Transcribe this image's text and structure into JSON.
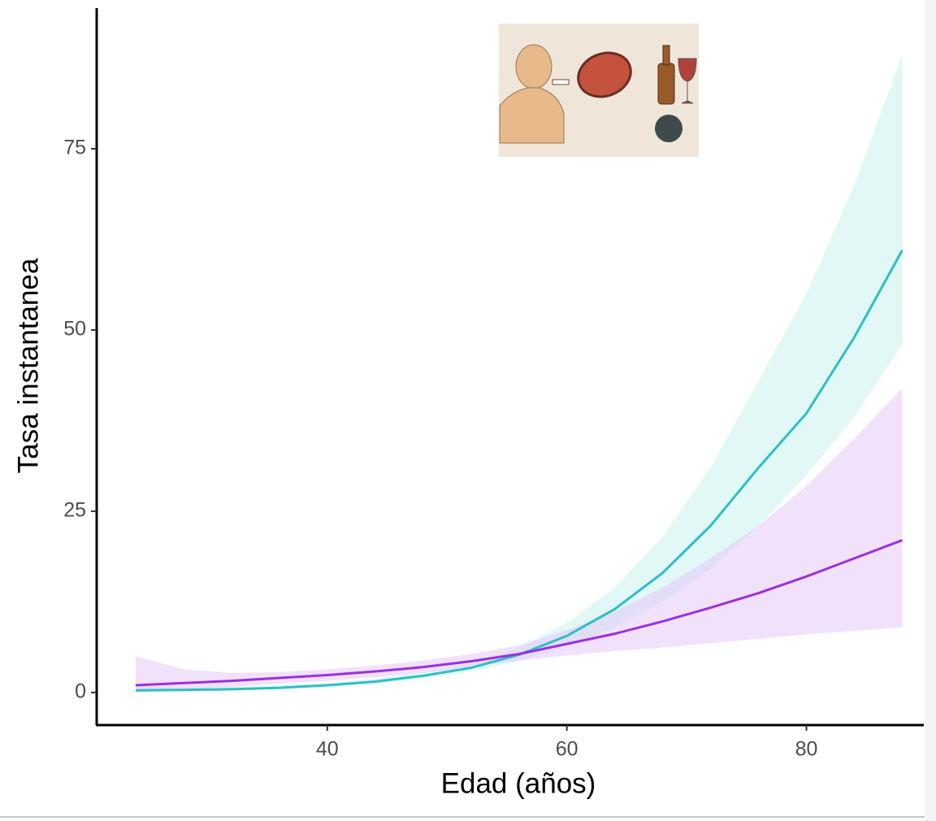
{
  "chart_data": {
    "type": "line",
    "x_label": "Edad (años)",
    "y_label": "Tasa instantanea",
    "x": [
      24,
      28,
      32,
      36,
      40,
      44,
      48,
      52,
      56,
      60,
      64,
      68,
      72,
      76,
      80,
      84,
      88
    ],
    "series": [
      {
        "color": "#2ebfc4",
        "band_color": "#c9f2ef",
        "values": [
          0.3,
          0.35,
          0.45,
          0.65,
          1.0,
          1.5,
          2.3,
          3.4,
          5.2,
          7.8,
          11.5,
          16.5,
          23,
          31,
          38.5,
          49,
          61
        ],
        "lower": [
          0.1,
          0.15,
          0.25,
          0.45,
          0.75,
          1.2,
          1.9,
          2.9,
          4.3,
          6.3,
          9,
          12.5,
          17,
          23,
          30,
          38,
          48
        ],
        "upper": [
          0.8,
          0.8,
          0.85,
          1.0,
          1.3,
          1.9,
          2.8,
          4.0,
          6.2,
          9.6,
          14.5,
          21.5,
          31,
          43,
          55,
          70,
          88
        ]
      },
      {
        "color": "#9b30e0",
        "band_color": "#e6c8f7",
        "values": [
          1.0,
          1.3,
          1.6,
          2.0,
          2.4,
          2.9,
          3.5,
          4.3,
          5.3,
          6.7,
          8.1,
          9.8,
          11.7,
          13.7,
          16,
          18.5,
          21
        ],
        "lower": [
          0,
          0.4,
          0.8,
          1.2,
          1.6,
          2.1,
          2.7,
          3.5,
          4.4,
          5.1,
          5.7,
          6.2,
          6.8,
          7.4,
          8,
          8.5,
          9
        ],
        "upper": [
          5,
          3.2,
          2.7,
          2.8,
          3.2,
          3.7,
          4.4,
          5.3,
          6.5,
          8.6,
          11.2,
          14.5,
          18.5,
          23,
          28.5,
          35,
          42
        ]
      }
    ],
    "xlim": [
      20.75,
      89.8
    ],
    "ylim": [
      -4.5,
      94.4
    ],
    "xticks": [
      40,
      60,
      80
    ],
    "yticks": [
      0,
      25,
      50,
      75
    ]
  }
}
